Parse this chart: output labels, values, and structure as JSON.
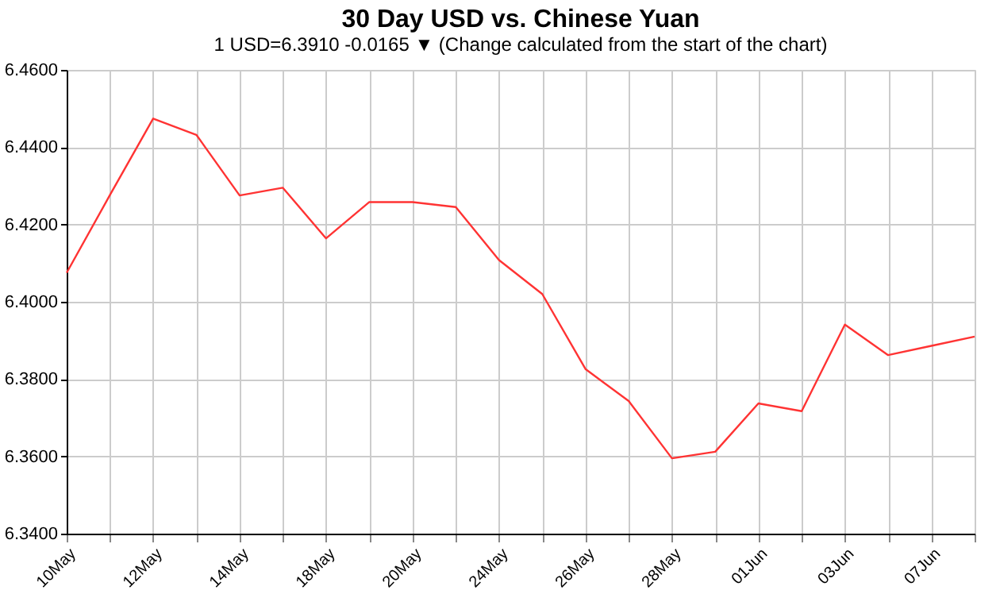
{
  "chart_data": {
    "type": "line",
    "title": "30 Day USD vs. Chinese Yuan",
    "subtitle": "1 USD=6.3910  -0.0165 ▼  (Change calculated from the start of the chart)",
    "categories": [
      "10May",
      null,
      "12May",
      null,
      "14May",
      null,
      "18May",
      null,
      "20May",
      null,
      "24May",
      null,
      "26May",
      null,
      "28May",
      null,
      "01Jun",
      null,
      "03Jun",
      null,
      "07Jun",
      null
    ],
    "series": [
      {
        "color": "#ff3333",
        "values": [
          6.4075,
          6.4276,
          6.4474,
          6.4432,
          6.4275,
          6.4295,
          6.4164,
          6.4258,
          6.4258,
          6.4245,
          6.4108,
          6.402,
          6.3826,
          6.3743,
          6.3595,
          6.3612,
          6.3737,
          6.3717,
          6.3941,
          6.3862,
          6.3886,
          6.391
        ]
      }
    ],
    "ylim": [
      6.34,
      6.46
    ],
    "yticks": [
      {
        "value": 6.34,
        "label": "6.3400"
      },
      {
        "value": 6.36,
        "label": "6.3600"
      },
      {
        "value": 6.38,
        "label": "6.3800"
      },
      {
        "value": 6.4,
        "label": "6.4000"
      },
      {
        "value": 6.42,
        "label": "6.4200"
      },
      {
        "value": 6.44,
        "label": "6.4400"
      },
      {
        "value": 6.46,
        "label": "6.4600"
      }
    ],
    "grid": true,
    "legend": false,
    "line_style": "solid",
    "marker": "none"
  }
}
